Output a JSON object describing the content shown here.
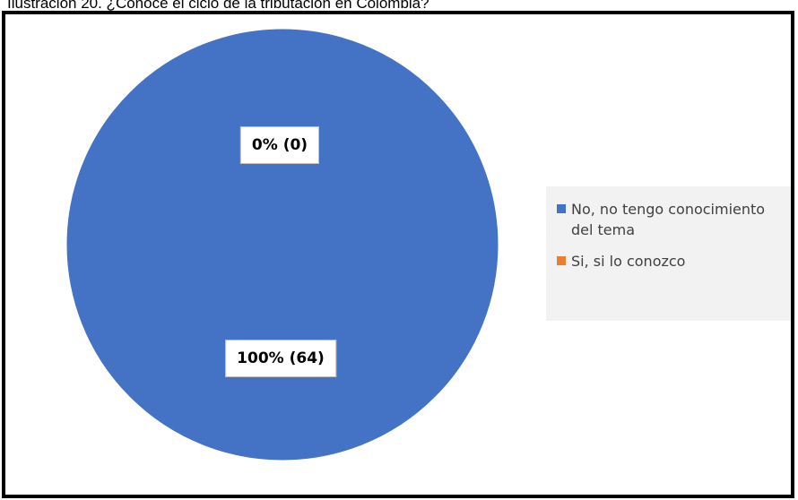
{
  "caption": "Ilustración 20. ¿Conoce el ciclo de la tributación en Colombia?",
  "chart_data": {
    "type": "pie",
    "title": "",
    "categories": [
      "No, no tengo conocimiento del tema",
      "Si, si lo conozco"
    ],
    "values": [
      64,
      0
    ],
    "data_labels": [
      "100% (64)",
      "0% (0)"
    ],
    "colors": [
      "#4472c4",
      "#ed7d31"
    ],
    "legend": "right"
  }
}
